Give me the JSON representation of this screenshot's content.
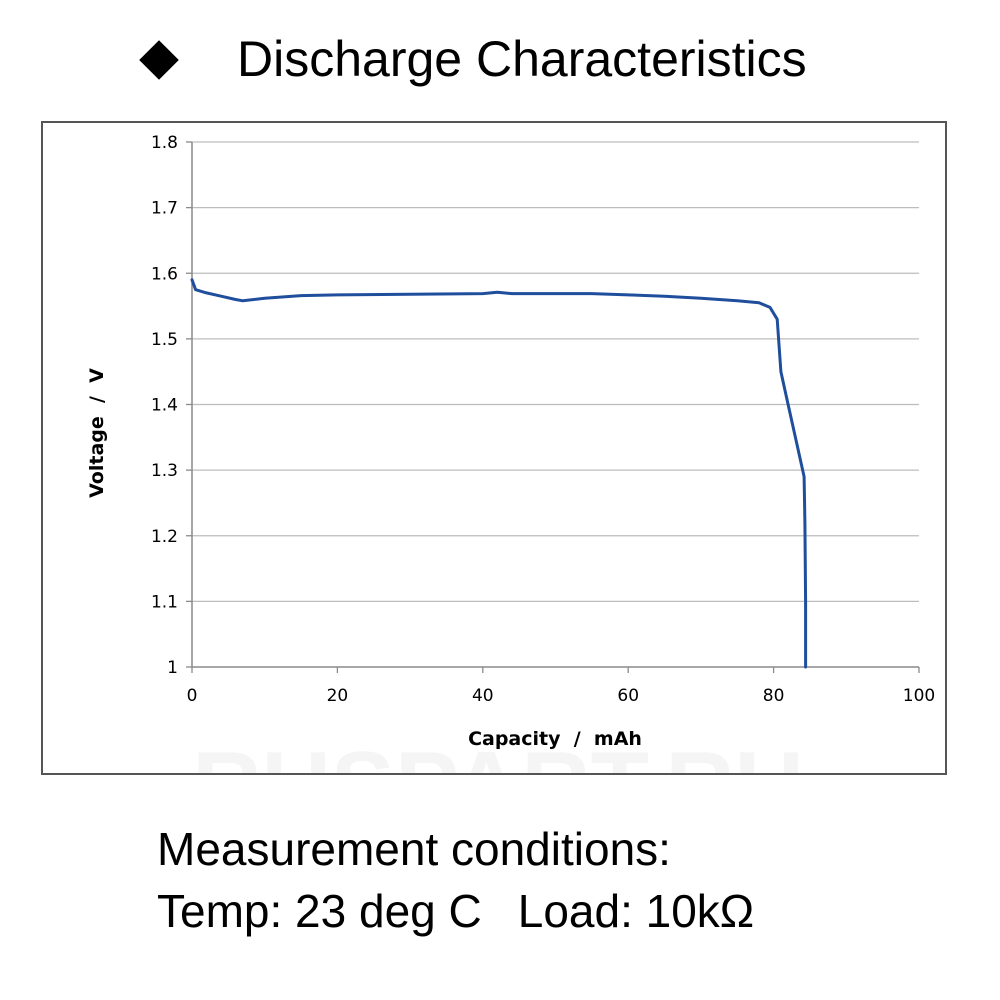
{
  "header": {
    "title": "Discharge Characteristics",
    "bullet_icon": "diamond-icon"
  },
  "watermark": {
    "text": "RUSPART.RU"
  },
  "conditions": {
    "heading": "Measurement conditions:",
    "temp": "Temp: 23 deg C",
    "load": "Load: 10kΩ"
  },
  "chart_data": {
    "type": "line",
    "title": "",
    "xlabel": "Capacity  /  mAh",
    "ylabel": "Voltage  /  V",
    "xlim": [
      0,
      100
    ],
    "ylim": [
      1.0,
      1.8
    ],
    "x_ticks": [
      0,
      20,
      40,
      60,
      80,
      100
    ],
    "x_tick_labels": [
      "0",
      "20",
      "40",
      "60",
      "80",
      "100"
    ],
    "y_ticks": [
      1.0,
      1.1,
      1.2,
      1.3,
      1.4,
      1.5,
      1.6,
      1.7,
      1.8
    ],
    "y_tick_labels": [
      "1",
      "1.1",
      "1.2",
      "1.3",
      "1.4",
      "1.5",
      "1.6",
      "1.7",
      "1.8"
    ],
    "grid": "horizontal",
    "legend": "none",
    "line_color": "#1f4e9c",
    "series": [
      {
        "x": [
          0,
          0.5,
          2,
          4,
          6,
          7,
          10,
          15,
          20,
          30,
          40,
          42,
          44,
          50,
          55,
          60,
          65,
          70,
          75,
          78,
          79.5,
          80.5,
          81,
          82,
          83,
          83.8,
          84.2,
          84.3,
          84.4,
          84.4,
          84.4
        ],
        "y": [
          1.59,
          1.575,
          1.57,
          1.565,
          1.56,
          1.558,
          1.562,
          1.566,
          1.567,
          1.568,
          1.569,
          1.571,
          1.569,
          1.569,
          1.569,
          1.567,
          1.565,
          1.562,
          1.558,
          1.555,
          1.548,
          1.53,
          1.45,
          1.4,
          1.35,
          1.31,
          1.29,
          1.22,
          1.1,
          1.02,
          1.0
        ]
      }
    ]
  }
}
